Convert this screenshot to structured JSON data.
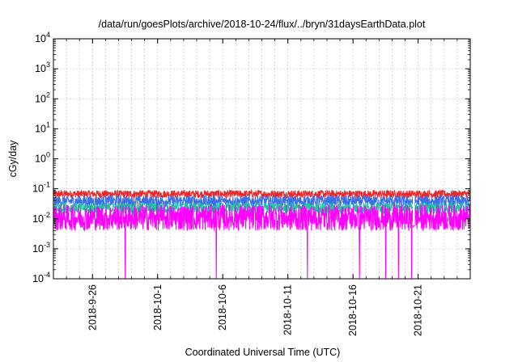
{
  "chart_data": {
    "type": "line",
    "title": "/data/run/goesPlots/archive/2018-10-24/flux/../bryn/31daysEarthData.plot",
    "xlabel": "Coordinated Universal Time (UTC)",
    "ylabel": "cGy/day",
    "y_scale": "log",
    "ylim": [
      0.0001,
      10000
    ],
    "y_ticks": [
      {
        "value": 0.0001,
        "base": "10",
        "exp": "-4"
      },
      {
        "value": 0.001,
        "base": "10",
        "exp": "-3"
      },
      {
        "value": 0.01,
        "base": "10",
        "exp": "-2"
      },
      {
        "value": 0.1,
        "base": "10",
        "exp": "-1"
      },
      {
        "value": 1,
        "base": "10",
        "exp": "0"
      },
      {
        "value": 10,
        "base": "10",
        "exp": "1"
      },
      {
        "value": 100,
        "base": "10",
        "exp": "2"
      },
      {
        "value": 1000,
        "base": "10",
        "exp": "3"
      },
      {
        "value": 10000,
        "base": "10",
        "exp": "4"
      }
    ],
    "xlim": [
      "2018-09-23",
      "2018-10-25"
    ],
    "x_ticks": [
      "2018-9-26",
      "2018-10-1",
      "2018-10-6",
      "2018-10-11",
      "2018-10-16",
      "2018-10-21"
    ],
    "x_tick_dates": [
      "2018-09-26",
      "2018-10-01",
      "2018-10-06",
      "2018-10-11",
      "2018-10-16",
      "2018-10-21"
    ],
    "grid": true,
    "series": [
      {
        "color": "#e8272a",
        "low": 0.05,
        "high": 0.09
      },
      {
        "color": "#3a6fe8",
        "low": 0.025,
        "high": 0.06
      },
      {
        "color": "#1ec49a",
        "low": 0.015,
        "high": 0.035
      },
      {
        "color": "#ff00ff",
        "low": 0.004,
        "high": 0.03
      }
    ],
    "dropouts": [
      "2018-09-28",
      "2018-10-05",
      "2018-10-12",
      "2018-10-16",
      "2018-10-18",
      "2018-10-19",
      "2018-10-20"
    ]
  }
}
